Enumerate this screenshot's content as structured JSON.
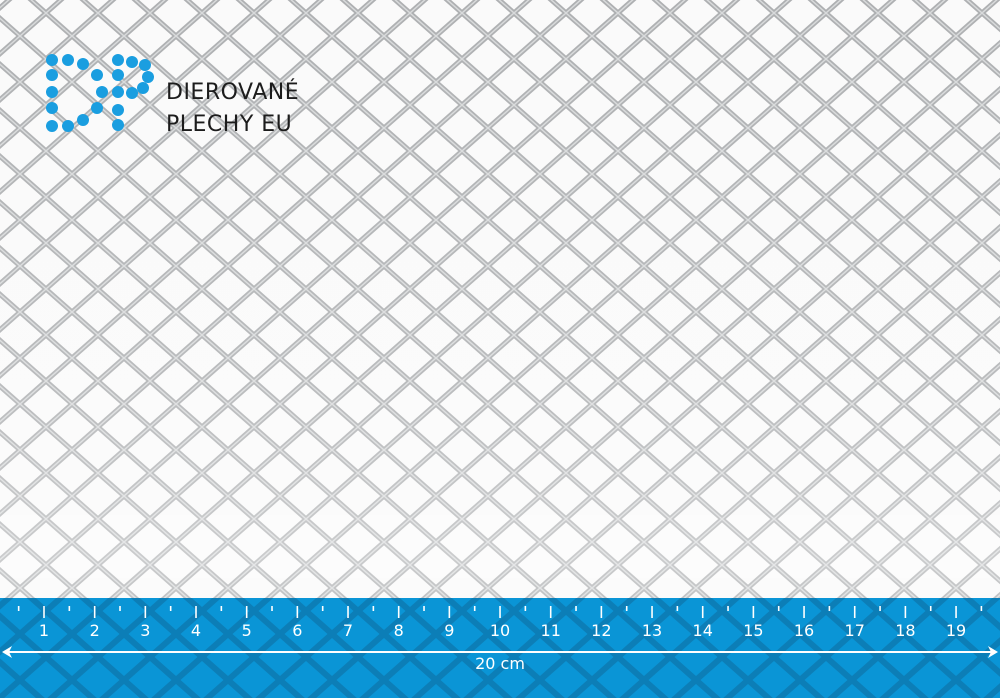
{
  "logo": {
    "line1": "DIEROVANÉ",
    "line2": "PLECHY EU",
    "dot_color": "#1a9ee0"
  },
  "ruler": {
    "labels": [
      "1",
      "2",
      "3",
      "4",
      "5",
      "6",
      "7",
      "8",
      "9",
      "10",
      "11",
      "12",
      "13",
      "14",
      "15",
      "16",
      "17",
      "18",
      "19"
    ],
    "length_label": "20 cm",
    "color": "#0a95d6"
  }
}
